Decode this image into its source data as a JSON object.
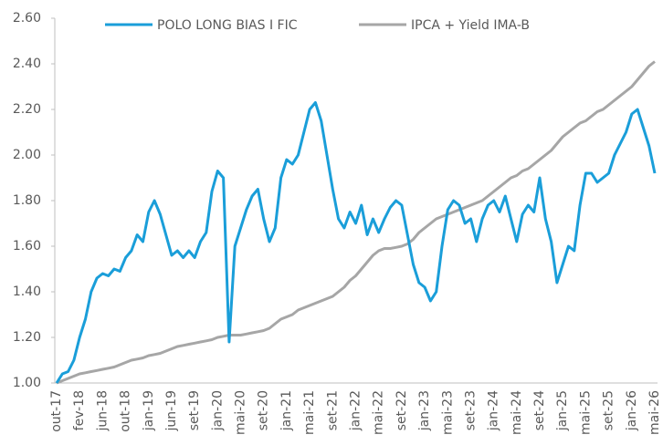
{
  "chart_data": {
    "type": "line",
    "categories": [
      "out-17",
      null,
      null,
      null,
      "fev-18",
      null,
      null,
      null,
      "jun-18",
      null,
      null,
      null,
      "out-18",
      null,
      null,
      null,
      "jan-19",
      null,
      null,
      null,
      "jun-19",
      null,
      null,
      null,
      "set-19",
      null,
      null,
      null,
      "jan-20",
      null,
      null,
      null,
      "mai-20",
      null,
      null,
      null,
      "set-20",
      null,
      null,
      null,
      "jan-21",
      null,
      null,
      null,
      "mai-21",
      null,
      null,
      null,
      "set-21",
      null,
      null,
      null,
      "jan-22",
      null,
      null,
      null,
      "mai-22",
      null,
      null,
      null,
      "set-22",
      null,
      null,
      null,
      "jan-23",
      null,
      null,
      null,
      "mai-23",
      null,
      null,
      null,
      "set-23",
      null,
      null,
      null,
      "jan-24",
      null,
      null,
      null,
      "mai-24",
      null,
      null,
      null,
      "set-24",
      null,
      null,
      null,
      "jan-25",
      null,
      null,
      null,
      "mai-25",
      null,
      null,
      null,
      "set-25",
      null,
      null,
      null,
      "jan-26",
      null,
      null,
      null,
      "mai-26"
    ],
    "series": [
      {
        "name": "POLO LONG BIAS I FIC",
        "color": "#1a9ed9",
        "values": [
          1.0,
          1.04,
          1.05,
          1.1,
          1.2,
          1.28,
          1.4,
          1.46,
          1.48,
          1.47,
          1.5,
          1.49,
          1.55,
          1.58,
          1.65,
          1.62,
          1.75,
          1.8,
          1.74,
          1.65,
          1.56,
          1.58,
          1.55,
          1.58,
          1.55,
          1.62,
          1.66,
          1.84,
          1.93,
          1.9,
          1.18,
          1.6,
          1.68,
          1.76,
          1.82,
          1.85,
          1.72,
          1.62,
          1.68,
          1.9,
          1.98,
          1.96,
          2.0,
          2.1,
          2.2,
          2.23,
          2.15,
          2.0,
          1.85,
          1.72,
          1.68,
          1.75,
          1.7,
          1.78,
          1.65,
          1.72,
          1.66,
          1.72,
          1.77,
          1.8,
          1.78,
          1.65,
          1.52,
          1.44,
          1.42,
          1.36,
          1.4,
          1.6,
          1.76,
          1.8,
          1.78,
          1.7,
          1.72,
          1.62,
          1.72,
          1.78,
          1.8,
          1.75,
          1.82,
          1.72,
          1.62,
          1.74,
          1.78,
          1.75,
          1.9,
          1.72,
          1.62,
          1.44,
          1.52,
          1.6,
          1.58,
          1.78,
          1.92,
          1.92,
          1.88,
          1.9,
          1.92,
          2.0,
          2.05,
          2.1,
          2.18,
          2.2,
          2.12,
          2.04,
          1.92
        ]
      },
      {
        "name": "IPCA + Yield IMA-B",
        "color": "#a6a6a6",
        "values": [
          1.0,
          1.01,
          1.02,
          1.03,
          1.04,
          1.045,
          1.05,
          1.055,
          1.06,
          1.065,
          1.07,
          1.08,
          1.09,
          1.1,
          1.105,
          1.11,
          1.12,
          1.125,
          1.13,
          1.14,
          1.15,
          1.16,
          1.165,
          1.17,
          1.175,
          1.18,
          1.185,
          1.19,
          1.2,
          1.205,
          1.21,
          1.21,
          1.21,
          1.215,
          1.22,
          1.225,
          1.23,
          1.24,
          1.26,
          1.28,
          1.29,
          1.3,
          1.32,
          1.33,
          1.34,
          1.35,
          1.36,
          1.37,
          1.38,
          1.4,
          1.42,
          1.45,
          1.47,
          1.5,
          1.53,
          1.56,
          1.58,
          1.59,
          1.59,
          1.595,
          1.6,
          1.61,
          1.63,
          1.66,
          1.68,
          1.7,
          1.72,
          1.73,
          1.74,
          1.75,
          1.76,
          1.77,
          1.78,
          1.79,
          1.8,
          1.82,
          1.84,
          1.86,
          1.88,
          1.9,
          1.91,
          1.93,
          1.94,
          1.96,
          1.98,
          2.0,
          2.02,
          2.05,
          2.08,
          2.1,
          2.12,
          2.14,
          2.15,
          2.17,
          2.19,
          2.2,
          2.22,
          2.24,
          2.26,
          2.28,
          2.3,
          2.33,
          2.36,
          2.39,
          2.41
        ]
      }
    ],
    "ylim": [
      1.0,
      2.6
    ],
    "yticks": [
      {
        "value": 1.0,
        "label": "1.00"
      },
      {
        "value": 1.2,
        "label": "1.20"
      },
      {
        "value": 1.4,
        "label": "1.40"
      },
      {
        "value": 1.6,
        "label": "1.60"
      },
      {
        "value": 1.8,
        "label": "1.80"
      },
      {
        "value": 2.0,
        "label": "2.00"
      },
      {
        "value": 2.2,
        "label": "2.20"
      },
      {
        "value": 2.4,
        "label": "2.40"
      },
      {
        "value": 2.6,
        "label": "2.60"
      }
    ],
    "grid": false,
    "legend": "top"
  }
}
